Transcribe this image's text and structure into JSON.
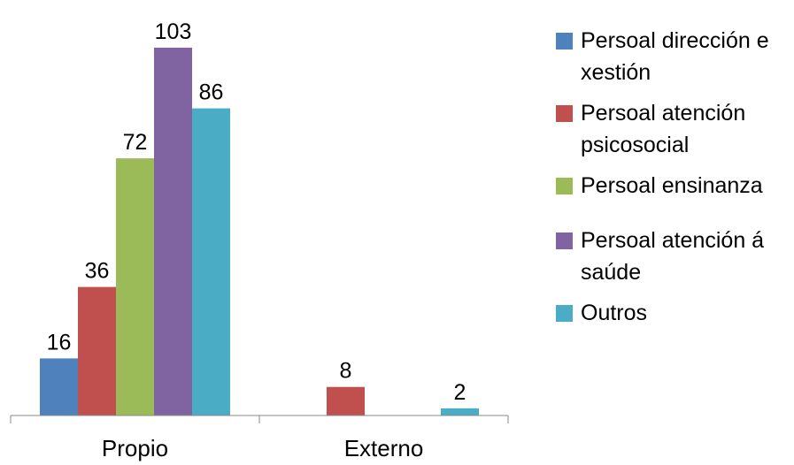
{
  "chart_data": {
    "type": "bar",
    "categories": [
      "Propio",
      "Externo"
    ],
    "series": [
      {
        "name": "Persoal dirección e xestión",
        "values": [
          16,
          null
        ],
        "color": "#4F81BD"
      },
      {
        "name": "Persoal atención psicosocial",
        "values": [
          36,
          8
        ],
        "color": "#C0504D"
      },
      {
        "name": "Persoal ensinanza",
        "values": [
          72,
          null
        ],
        "color": "#9BBB59"
      },
      {
        "name": "Persoal atención á saúde",
        "values": [
          103,
          null
        ],
        "color": "#8064A2"
      },
      {
        "name": "Outros",
        "values": [
          86,
          2
        ],
        "color": "#4BACC6"
      }
    ],
    "ylim": [
      0,
      110
    ],
    "grid": false,
    "legend_position": "right",
    "data_labels": true
  }
}
